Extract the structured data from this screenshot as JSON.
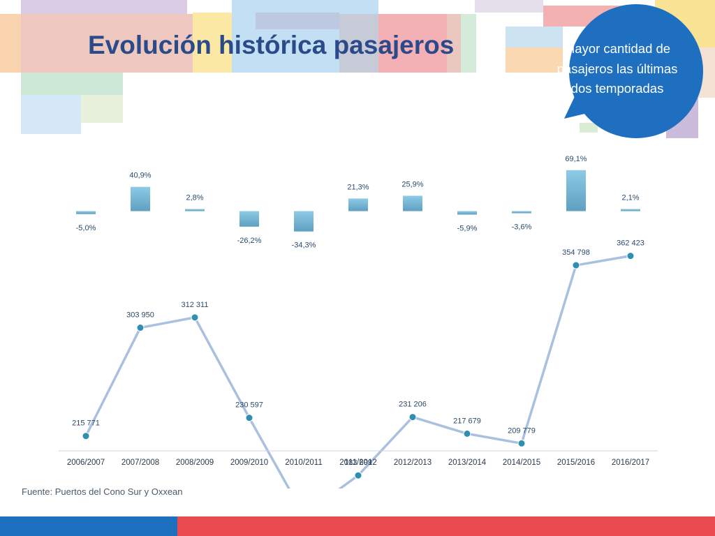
{
  "title": "Evolución histórica pasajeros",
  "callout": {
    "text": "Mayor cantidad de pasajeros las últimas dos temporadas",
    "color": "#1f6fc0"
  },
  "source": "Fuente: Puertos del Cono Sur y Oxxean",
  "colors": {
    "title": "#2b4a8a",
    "line": "#a9c0de",
    "marker": "#2f8fb0",
    "bar_top": "#8dcbe6",
    "bar_bottom": "#5f9fc0",
    "label": "#2b4a6a",
    "footer_blue": "#1d6fbf",
    "footer_red": "#e84a50"
  },
  "chart_data": {
    "type": "line",
    "categories": [
      "2006/2007",
      "2007/2008",
      "2008/2009",
      "2009/2010",
      "2010/2011",
      "2011/2012",
      "2012/2013",
      "2013/2014",
      "2014/2015",
      "2015/2016",
      "2016/2017"
    ],
    "series": [
      {
        "values": [
          215771,
          303950,
          312311,
          230597,
          151458,
          183699,
          231206,
          217679,
          209779,
          354798,
          362423
        ],
        "value_labels": [
          "215 771",
          "303 950",
          "312 311",
          "230 597",
          "151 458",
          "183 699",
          "231 206",
          "217 679",
          "209 779",
          "354 798",
          "362 423"
        ]
      }
    ],
    "growth": {
      "type": "bar",
      "values": [
        -5.0,
        40.9,
        2.8,
        -26.2,
        -34.3,
        21.3,
        25.9,
        -5.9,
        -3.6,
        69.1,
        2.1
      ],
      "labels": [
        "-5,0%",
        "40,9%",
        "2,8%",
        "-26,2%",
        "-34,3%",
        "21,3%",
        "25,9%",
        "-5,9%",
        "-3,6%",
        "69,1%",
        "2,1%"
      ]
    },
    "grid": false,
    "legend": "none"
  }
}
